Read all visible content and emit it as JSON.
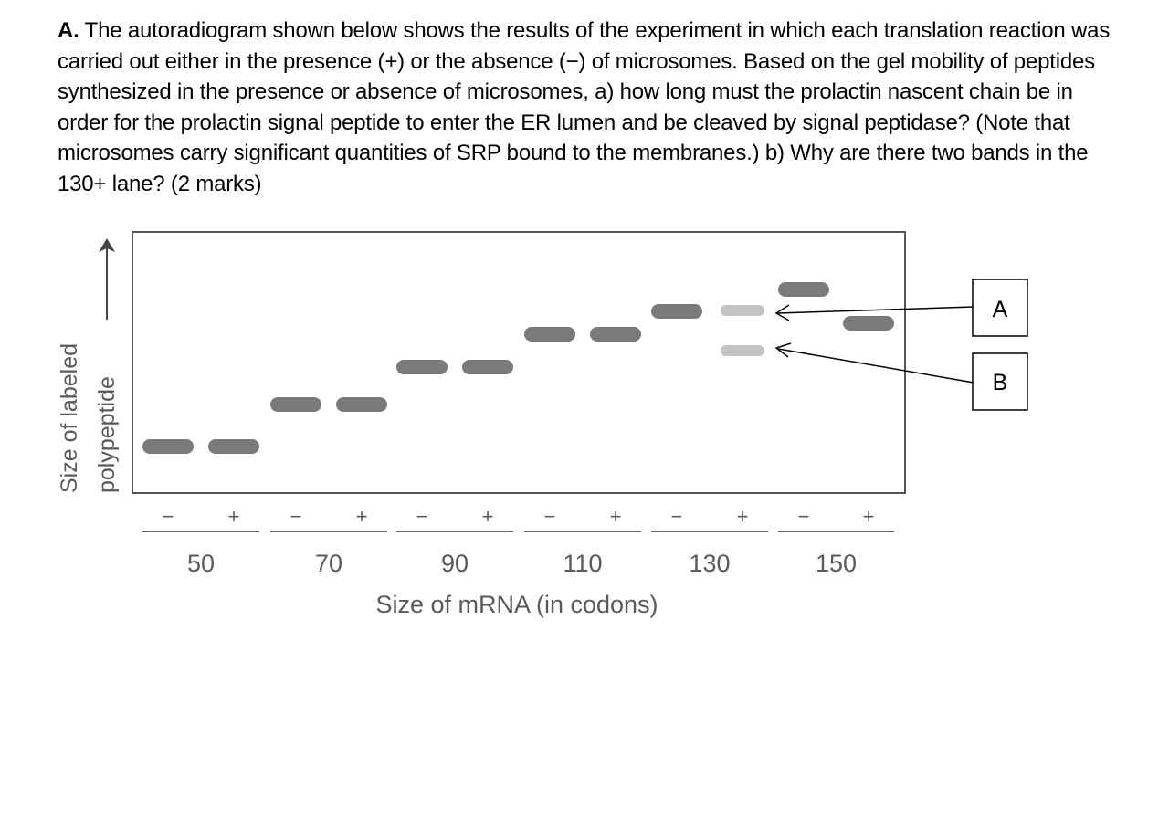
{
  "question": {
    "label": "A.",
    "text": "The autoradiogram shown below shows the results of the experiment in which each translation reaction was carried out either in the presence (+) or the absence (−) of microsomes. Based on the gel mobility of peptides synthesized in the presence or absence of microsomes, a) how long must the prolactin nascent chain be in order for the prolactin signal peptide to enter the ER lumen and be cleaved by signal peptidase? (Note that microsomes carry significant quantities of SRP bound to the membranes.) b) Why are there two bands in the 130+ lane? (2 marks)"
  },
  "figure": {
    "y_axis_label_line1": "Size of labeled",
    "y_axis_label_line2": "polypeptide",
    "x_axis_label": "Size of mRNA (in codons)",
    "minus_sign": "−",
    "plus_sign": "+",
    "groups": [
      {
        "label": "50"
      },
      {
        "label": "70"
      },
      {
        "label": "90"
      },
      {
        "label": "110"
      },
      {
        "label": "130"
      },
      {
        "label": "150"
      }
    ],
    "callouts": [
      {
        "label": "A"
      },
      {
        "label": "B"
      }
    ],
    "colors": {
      "band_dark": "#7a7a7a",
      "band_light": "#c4c4c4",
      "frame": "#555555",
      "axis_text": "#5a5a5a"
    }
  }
}
